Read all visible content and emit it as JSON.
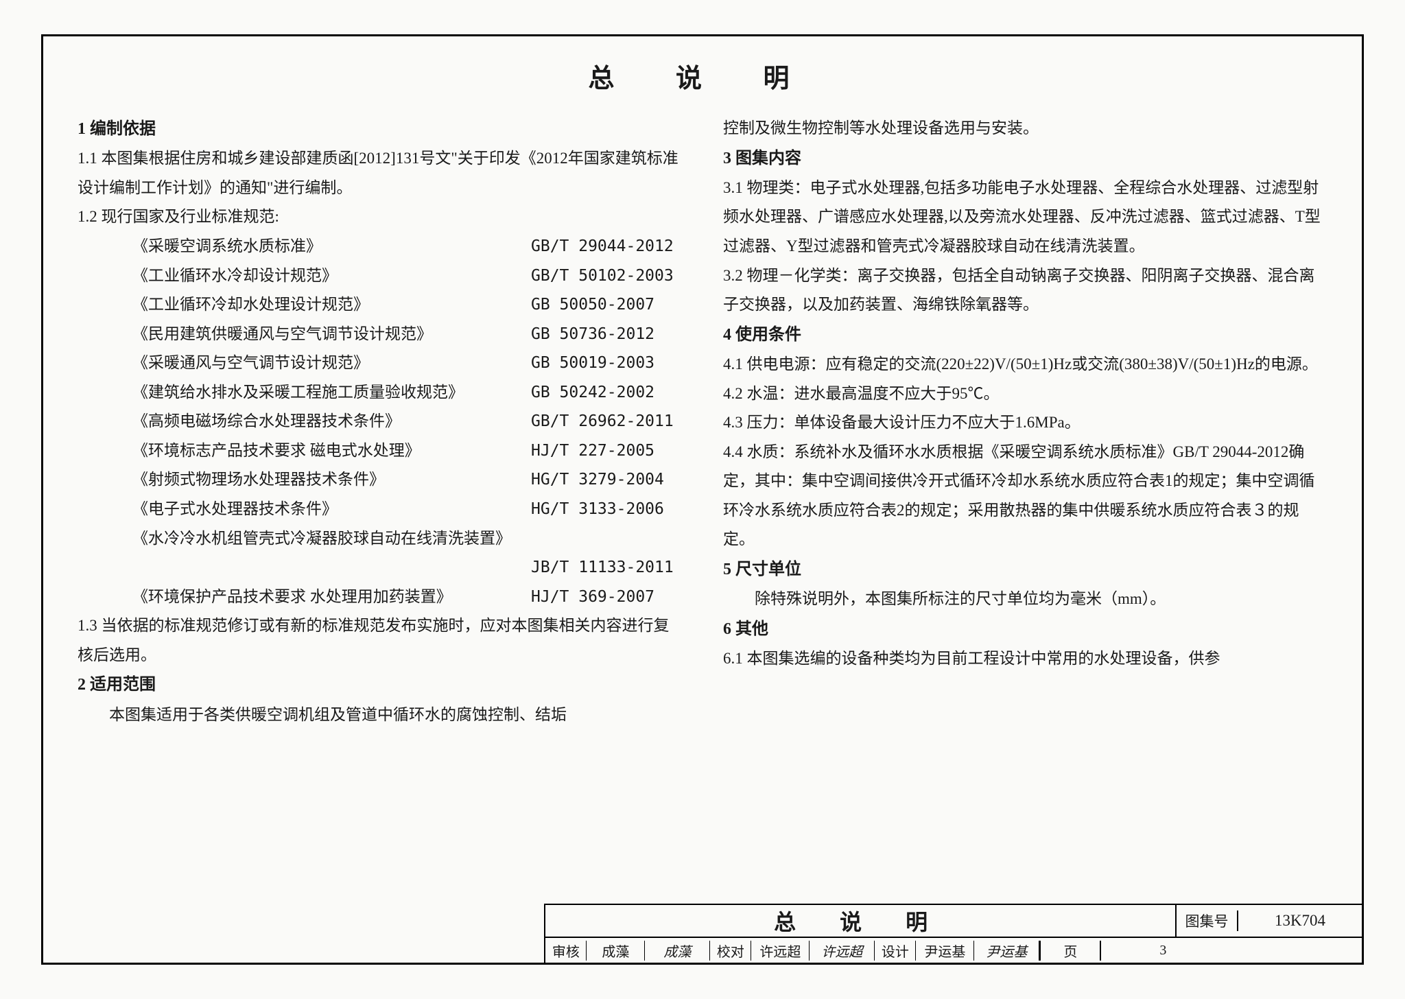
{
  "title": "总 说 明",
  "left": {
    "s1_h": "1  编制依据",
    "s1_1": "1.1 本图集根据住房和城乡建设部建质函[2012]131号文\"关于印发《2012年国家建筑标准设计编制工作计划》的通知\"进行编制。",
    "s1_2": "1.2 现行国家及行业标准规范:",
    "standards": [
      {
        "name": "《采暖空调系统水质标准》",
        "code": "GB/T 29044-2012"
      },
      {
        "name": "《工业循环水冷却设计规范》",
        "code": "GB/T 50102-2003"
      },
      {
        "name": "《工业循环冷却水处理设计规范》",
        "code": "GB 50050-2007"
      },
      {
        "name": "《民用建筑供暖通风与空气调节设计规范》",
        "code": "GB 50736-2012"
      },
      {
        "name": "《采暖通风与空气调节设计规范》",
        "code": "GB 50019-2003"
      },
      {
        "name": "《建筑给水排水及采暖工程施工质量验收规范》",
        "code": "GB 50242-2002"
      },
      {
        "name": "《高频电磁场综合水处理器技术条件》",
        "code": "GB/T 26962-2011"
      },
      {
        "name": "《环境标志产品技术要求 磁电式水处理》",
        "code": "HJ/T 227-2005"
      },
      {
        "name": "《射频式物理场水处理器技术条件》",
        "code": "HG/T 3279-2004"
      },
      {
        "name": "《电子式水处理器技术条件》",
        "code": "HG/T 3133-2006"
      },
      {
        "name": "《水冷冷水机组管壳式冷凝器胶球自动在线清洗装置》",
        "code": ""
      },
      {
        "name": "",
        "code": "JB/T 11133-2011"
      },
      {
        "name": "《环境保护产品技术要求  水处理用加药装置》",
        "code": "HJ/T 369-2007"
      }
    ],
    "s1_3": "1.3 当依据的标准规范修订或有新的标准规范发布实施时，应对本图集相关内容进行复核后选用。",
    "s2_h": "2  适用范围",
    "s2_t": "本图集适用于各类供暖空调机组及管道中循环水的腐蚀控制、结垢"
  },
  "right": {
    "cont": "控制及微生物控制等水处理设备选用与安装。",
    "s3_h": "3  图集内容",
    "s3_1": "3.1 物理类：电子式水处理器,包括多功能电子水处理器、全程综合水处理器、过滤型射频水处理器、广谱感应水处理器,以及旁流水处理器、反冲洗过滤器、篮式过滤器、T型过滤器、Y型过滤器和管壳式冷凝器胶球自动在线清洗装置。",
    "s3_2": "3.2 物理－化学类：离子交换器，包括全自动钠离子交换器、阳阴离子交换器、混合离子交换器，以及加药装置、海绵铁除氧器等。",
    "s4_h": "4  使用条件",
    "s4_1": "4.1 供电电源：应有稳定的交流(220±22)V/(50±1)Hz或交流(380±38)V/(50±1)Hz的电源。",
    "s4_2": "4.2 水温：进水最高温度不应大于95℃。",
    "s4_3": "4.3 压力：单体设备最大设计压力不应大于1.6MPa。",
    "s4_4": "4.4 水质：系统补水及循环水水质根据《采暖空调系统水质标准》GB/T 29044-2012确定，其中：集中空调间接供冷开式循环冷却水系统水质应符合表1的规定；集中空调循环冷水系统水质应符合表2的规定；采用散热器的集中供暖系统水质应符合表３的规定。",
    "s5_h": "5  尺寸单位",
    "s5_t": "除特殊说明外，本图集所标注的尺寸单位均为毫米（mm）。",
    "s6_h": "6  其他",
    "s6_1": "6.1 本图集选编的设备种类均为目前工程设计中常用的水处理设备，供参"
  },
  "footer": {
    "title": "总 说 明",
    "code_label": "图集号",
    "code": "13K704",
    "sk_l": "审核",
    "sk_n": "成藻",
    "sk_s": "成藻",
    "jd_l": "校对",
    "jd_n": "许远超",
    "jd_s": "许远超",
    "sj_l": "设计",
    "sj_n": "尹运基",
    "sj_s": "尹运基",
    "pg_l": "页",
    "pg": "3"
  }
}
